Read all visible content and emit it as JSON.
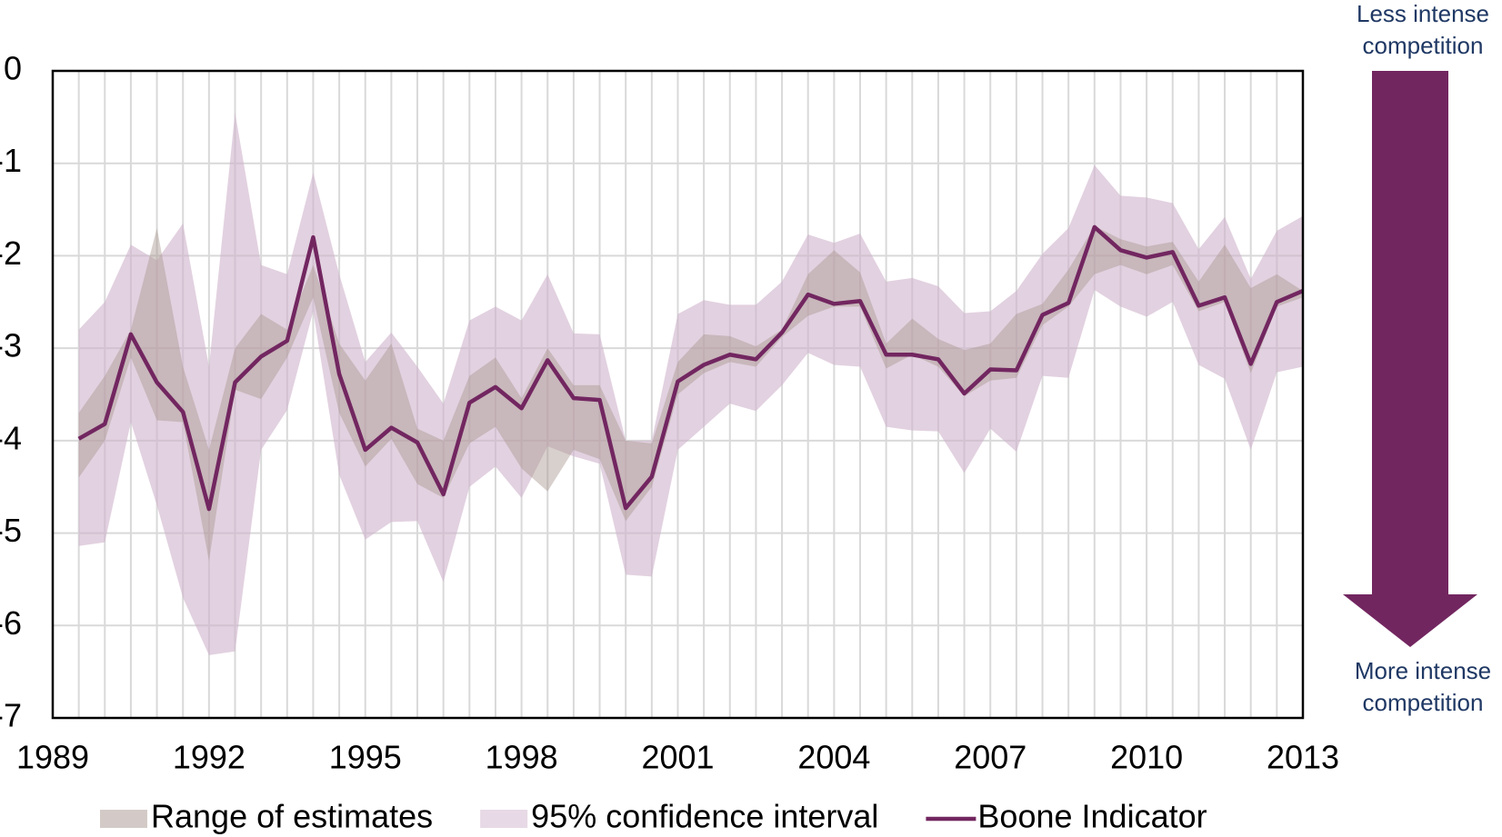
{
  "chart_data": {
    "type": "line",
    "x": [
      1989.5,
      1990,
      1990.5,
      1991,
      1991.5,
      1992,
      1992.5,
      1993,
      1993.5,
      1994,
      1994.5,
      1995,
      1995.5,
      1996,
      1996.5,
      1997,
      1997.5,
      1998,
      1998.5,
      1999,
      1999.5,
      2000,
      2000.5,
      2001,
      2001.5,
      2002,
      2002.5,
      2003,
      2003.5,
      2004,
      2004.5,
      2005,
      2005.5,
      2006,
      2006.5,
      2007,
      2007.5,
      2008,
      2008.5,
      2009,
      2009.5,
      2010,
      2010.5,
      2011,
      2011.5,
      2012,
      2012.5,
      2013
    ],
    "xlim": [
      1989,
      2013
    ],
    "xticks": [
      1989,
      1992,
      1995,
      1998,
      2001,
      2004,
      2007,
      2010,
      2013
    ],
    "ylim": [
      -7,
      0
    ],
    "yticks": [
      0,
      -1,
      -2,
      -3,
      -4,
      -5,
      -6,
      -7
    ],
    "grid": true,
    "bands": [
      {
        "name": "95% confidence interval",
        "color": "#cfb3cc",
        "upper": [
          -2.8,
          -2.5,
          -1.88,
          -2.05,
          -1.65,
          -3.2,
          -0.45,
          -2.1,
          -2.2,
          -1.1,
          -2.2,
          -3.15,
          -2.83,
          -3.2,
          -3.6,
          -2.7,
          -2.55,
          -2.7,
          -2.2,
          -2.84,
          -2.85,
          -4.0,
          -4.0,
          -2.63,
          -2.48,
          -2.53,
          -2.53,
          -2.28,
          -1.77,
          -1.86,
          -1.76,
          -2.28,
          -2.24,
          -2.33,
          -2.62,
          -2.6,
          -2.38,
          -1.98,
          -1.7,
          -1.02,
          -1.35,
          -1.37,
          -1.43,
          -1.93,
          -1.58,
          -2.25,
          -1.73,
          -1.57
        ],
        "lower": [
          -5.14,
          -5.1,
          -3.8,
          -4.7,
          -5.7,
          -6.32,
          -6.28,
          -4.1,
          -3.67,
          -2.6,
          -4.37,
          -5.07,
          -4.88,
          -4.87,
          -5.53,
          -4.5,
          -4.28,
          -4.62,
          -4.06,
          -4.17,
          -4.25,
          -5.45,
          -5.47,
          -4.1,
          -3.85,
          -3.6,
          -3.68,
          -3.4,
          -3.05,
          -3.18,
          -3.2,
          -3.85,
          -3.89,
          -3.9,
          -4.35,
          -3.87,
          -4.12,
          -3.3,
          -3.32,
          -2.37,
          -2.55,
          -2.66,
          -2.5,
          -3.18,
          -3.33,
          -4.1,
          -3.26,
          -3.2
        ]
      },
      {
        "name": "Range of estimates",
        "color": "#a8968f",
        "upper": [
          -3.7,
          -3.3,
          -2.8,
          -1.7,
          -3.2,
          -4.1,
          -3.0,
          -2.63,
          -2.8,
          -2.1,
          -2.95,
          -3.35,
          -2.95,
          -3.87,
          -4.0,
          -3.3,
          -3.1,
          -3.54,
          -3.0,
          -3.4,
          -3.4,
          -4.0,
          -4.03,
          -3.15,
          -2.85,
          -2.87,
          -2.98,
          -2.8,
          -2.2,
          -1.94,
          -2.18,
          -2.95,
          -2.68,
          -2.9,
          -3.02,
          -2.95,
          -2.63,
          -2.52,
          -2.15,
          -1.68,
          -1.82,
          -1.9,
          -1.85,
          -2.28,
          -1.88,
          -2.35,
          -2.2,
          -2.38
        ],
        "lower": [
          -4.4,
          -4.0,
          -3.1,
          -3.78,
          -3.8,
          -5.3,
          -3.45,
          -3.55,
          -3.1,
          -2.45,
          -3.7,
          -4.28,
          -3.98,
          -4.47,
          -4.62,
          -4.03,
          -3.85,
          -4.3,
          -4.55,
          -4.1,
          -4.2,
          -4.87,
          -4.5,
          -3.5,
          -3.27,
          -3.15,
          -3.2,
          -2.88,
          -2.65,
          -2.55,
          -2.55,
          -3.22,
          -3.07,
          -3.2,
          -3.52,
          -3.35,
          -3.32,
          -2.75,
          -2.55,
          -2.2,
          -2.1,
          -2.2,
          -2.1,
          -2.6,
          -2.5,
          -3.27,
          -2.55,
          -2.45
        ]
      }
    ],
    "series": [
      {
        "name": "Boone Indicator",
        "color": "#722660",
        "values": [
          -3.98,
          -3.82,
          -2.85,
          -3.37,
          -3.69,
          -4.74,
          -3.37,
          -3.09,
          -2.92,
          -1.8,
          -3.28,
          -4.1,
          -3.86,
          -4.02,
          -4.58,
          -3.59,
          -3.42,
          -3.65,
          -3.13,
          -3.54,
          -3.56,
          -4.73,
          -4.39,
          -3.36,
          -3.18,
          -3.07,
          -3.12,
          -2.83,
          -2.42,
          -2.52,
          -2.49,
          -3.07,
          -3.07,
          -3.12,
          -3.49,
          -3.23,
          -3.24,
          -2.64,
          -2.51,
          -1.69,
          -1.94,
          -2.02,
          -1.96,
          -2.54,
          -2.45,
          -3.17,
          -2.5,
          -2.38
        ]
      }
    ],
    "legend_order": [
      1,
      0
    ],
    "annotations": {
      "top": [
        "Less intense",
        "competition"
      ],
      "bottom": [
        "More intense",
        "competition"
      ]
    }
  }
}
